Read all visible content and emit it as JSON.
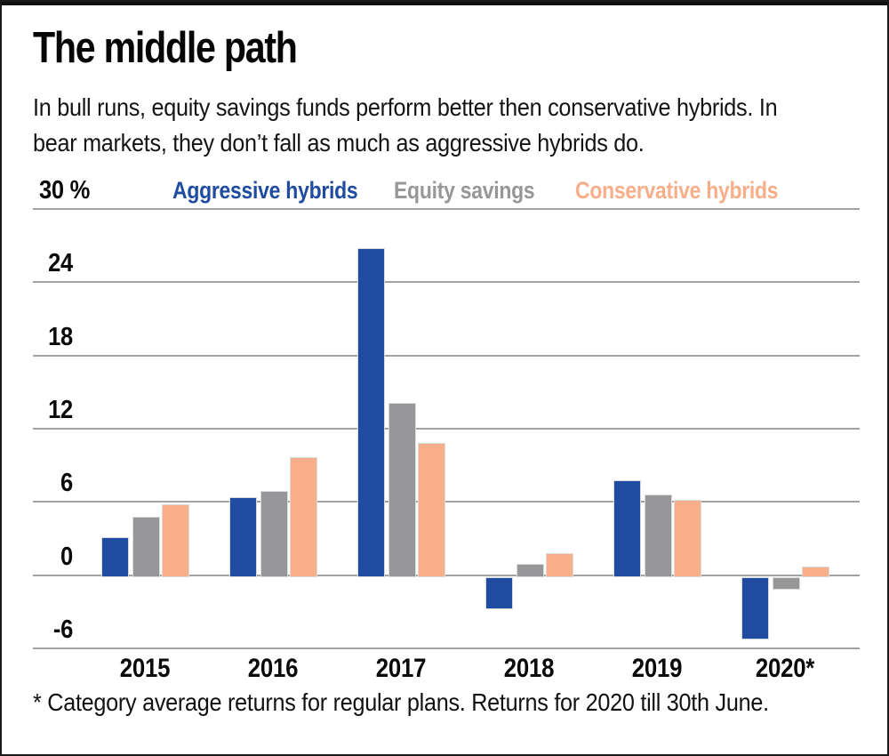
{
  "header": {
    "title": "The middle path",
    "subtitle_line1": "In bull runs, equity savings funds perform better then conservative hybrids. In",
    "subtitle_line2": "bear markets, they don’t fall as much as aggressive hybrids do."
  },
  "chart_data": {
    "type": "bar",
    "title": "The middle path",
    "categories": [
      "2015",
      "2016",
      "2017",
      "2018",
      "2019",
      "2020*"
    ],
    "series": [
      {
        "name": "Aggressive hybrids",
        "color": "#1f4ca0",
        "values": [
          3.1,
          6.4,
          26.8,
          -2.8,
          7.8,
          -5.3
        ]
      },
      {
        "name": "Equity savings",
        "color": "#97979a",
        "values": [
          4.8,
          6.9,
          14.1,
          0.9,
          6.6,
          -1.2
        ]
      },
      {
        "name": "Conservative hybrids",
        "color": "#f9ae8a",
        "values": [
          5.8,
          9.7,
          10.8,
          1.8,
          6.2,
          0.7
        ]
      }
    ],
    "unit": "%",
    "ylim": [
      -6,
      30
    ],
    "yticks": [
      {
        "label": "30 %",
        "value": 30
      },
      {
        "label": "24",
        "value": 24
      },
      {
        "label": "18",
        "value": 18
      },
      {
        "label": "12",
        "value": 12
      },
      {
        "label": "6",
        "value": 6
      },
      {
        "label": "0",
        "value": 0
      },
      {
        "label": "-6",
        "value": -6
      }
    ],
    "grid": true,
    "legend_position": "top"
  },
  "footnote": "* Category average returns for regular plans. Returns for 2020 till 30th June."
}
